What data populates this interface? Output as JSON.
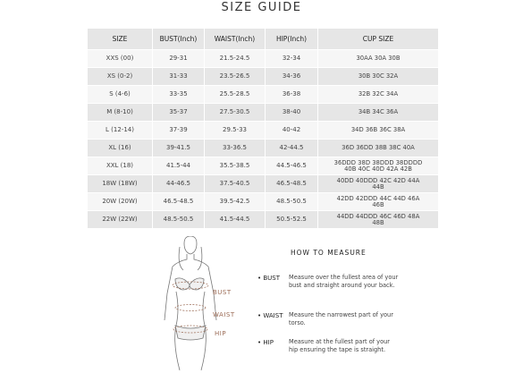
{
  "title": "SIZE GUIDE",
  "table": {
    "header": [
      "SIZE",
      "BUST(Inch)",
      "WAIST(Inch)",
      "HIP(Inch)",
      "CUP SIZE"
    ],
    "rows": [
      [
        "XXS (00)",
        "29-31",
        "21.5-24.5",
        "32-34",
        "30AA 30A 30B"
      ],
      [
        "XS (0-2)",
        "31-33",
        "23.5-26.5",
        "34-36",
        "30B 30C 32A"
      ],
      [
        "S (4-6)",
        "33-35",
        "25.5-28.5",
        "36-38",
        "32B 32C 34A"
      ],
      [
        "M (8-10)",
        "35-37",
        "27.5-30.5",
        "38-40",
        "34B 34C 36A"
      ],
      [
        "L (12-14)",
        "37-39",
        "29.5-33",
        "40-42",
        "34D 36B 36C 38A"
      ],
      [
        "XL (16)",
        "39-41.5",
        "33-36.5",
        "42-44.5",
        "36D 36DD 38B 38C 40A"
      ],
      [
        "XXL (18)",
        "41.5-44",
        "35.5-38.5",
        "44.5-46.5",
        "36DDD 38D 38DDD 38DDDD 40B 40C 40D 42A 42B"
      ],
      [
        "18W (18W)",
        "44-46.5",
        "37.5-40.5",
        "46.5-48.5",
        "40DD 40DDD 42C 42D 44A 44B"
      ],
      [
        "20W (20W)",
        "46.5-48.5",
        "39.5-42.5",
        "48.5-50.5",
        "42DD 42DDD 44C 44D 46A 46B"
      ],
      [
        "22W (22W)",
        "48.5-50.5",
        "41.5-44.5",
        "50.5-52.5",
        "44DD 44DDD 46C 46D 48A 48B"
      ]
    ]
  },
  "figure_labels": [
    "BUST",
    "WAIST",
    "HIP"
  ],
  "how_to_measure": {
    "title": "HOW TO MEASURE",
    "items": [
      {
        "label": "BUST",
        "text": "Measure over the fullest area of your bust and straight around your back."
      },
      {
        "label": "WAIST",
        "text": "Measure the narrowest part of your torso."
      },
      {
        "label": "HIP",
        "text": "Measure at the fullest part of your hip ensuring the tape is straight."
      }
    ]
  }
}
